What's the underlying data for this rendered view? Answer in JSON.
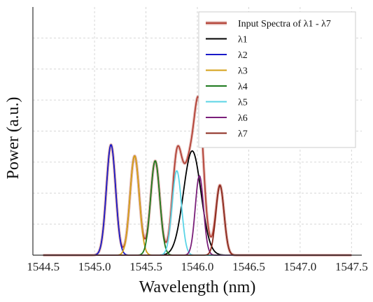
{
  "chart_data": {
    "type": "line",
    "xlabel": "Wavelength (nm)",
    "ylabel": "Power (a.u.)",
    "xlim": [
      1544.4,
      1547.6
    ],
    "ylim": [
      0,
      1
    ],
    "xticks": [
      "1544.5",
      "1545.0",
      "1545.5",
      "1546.0",
      "1546.5",
      "1547.0",
      "1547.5"
    ],
    "xtick_values": [
      1544.5,
      1545.0,
      1545.5,
      1546.0,
      1546.5,
      1547.0,
      1547.5
    ],
    "grid": true,
    "legend_position": "top-right",
    "series": [
      {
        "name": "Input Spectra of  λ1 - λ7",
        "color": "#b03a2e",
        "type": "sum"
      },
      {
        "name": "λ1",
        "color": "#000000",
        "peak_x": 1545.95,
        "peak_y": 0.42,
        "width": 0.085
      },
      {
        "name": "λ2",
        "color": "#1a1ac8",
        "peak_x": 1545.16,
        "peak_y": 0.445,
        "width": 0.045
      },
      {
        "name": "λ3",
        "color": "#d4a017",
        "peak_x": 1545.39,
        "peak_y": 0.4,
        "width": 0.045
      },
      {
        "name": "λ4",
        "color": "#1e7a1e",
        "peak_x": 1545.59,
        "peak_y": 0.38,
        "width": 0.045
      },
      {
        "name": "λ5",
        "color": "#5ad4e6",
        "peak_x": 1545.8,
        "peak_y": 0.34,
        "width": 0.045
      },
      {
        "name": "λ6",
        "color": "#7a1f7a",
        "peak_x": 1546.02,
        "peak_y": 0.32,
        "width": 0.04
      },
      {
        "name": "λ7",
        "color": "#8b2a1e",
        "peak_x": 1546.22,
        "peak_y": 0.28,
        "width": 0.04
      }
    ]
  }
}
